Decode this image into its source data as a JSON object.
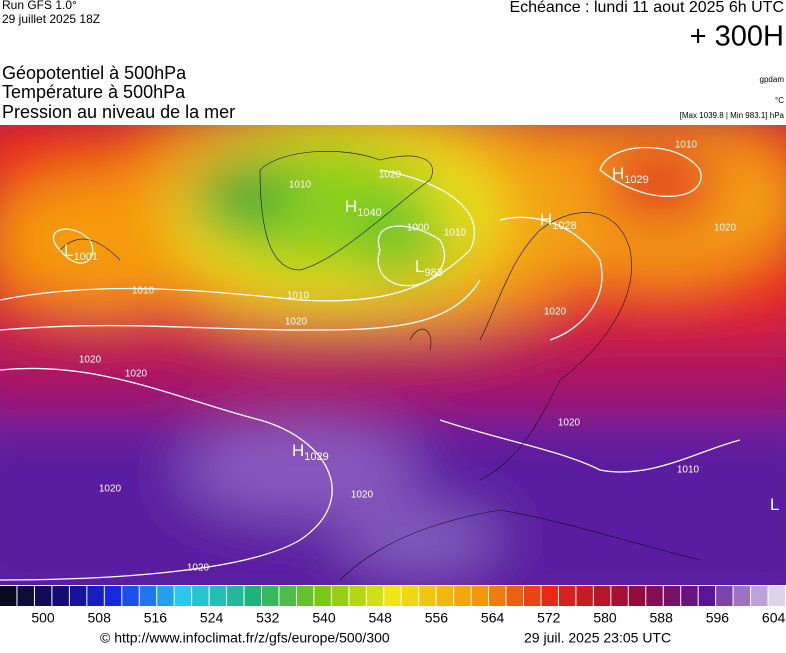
{
  "header": {
    "run": "Run GFS 1.0°",
    "run_date": "29 juillet 2025 18Z",
    "echeance": "Echéance : lundi 11 aout 2025 6h UTC",
    "horizon": "+ 300H"
  },
  "layers": [
    "Géopotentiel à 500hPa",
    "Température à 500hPa",
    "Pression au niveau de la mer"
  ],
  "units": {
    "geopotential": "gpdam",
    "temperature": "°C",
    "pressure": "[Max 1039.8 | Min 983.1] hPa"
  },
  "centers": [
    {
      "kind": "H",
      "value": 1029
    },
    {
      "kind": "H",
      "value": 1040
    },
    {
      "kind": "L",
      "value": 983
    },
    {
      "kind": "L",
      "value": 1001
    },
    {
      "kind": "H",
      "value": 1028
    },
    {
      "kind": "H",
      "value": 1029
    },
    {
      "kind": "L",
      "value": null
    }
  ],
  "isobar_labels": [
    1010,
    1020,
    1000,
    1010,
    1010,
    1010,
    1020,
    1020,
    1020,
    1020,
    1020,
    1020,
    1020,
    1020,
    1010,
    1010,
    1020
  ],
  "scale_labels": [
    500,
    508,
    516,
    524,
    532,
    540,
    548,
    556,
    564,
    572,
    580,
    588,
    596,
    604
  ],
  "footer": {
    "source": "© http://www.infoclimat.fr/z/gfs/europe/500/300",
    "generated": "29 juil. 2025 23:05 UTC"
  }
}
